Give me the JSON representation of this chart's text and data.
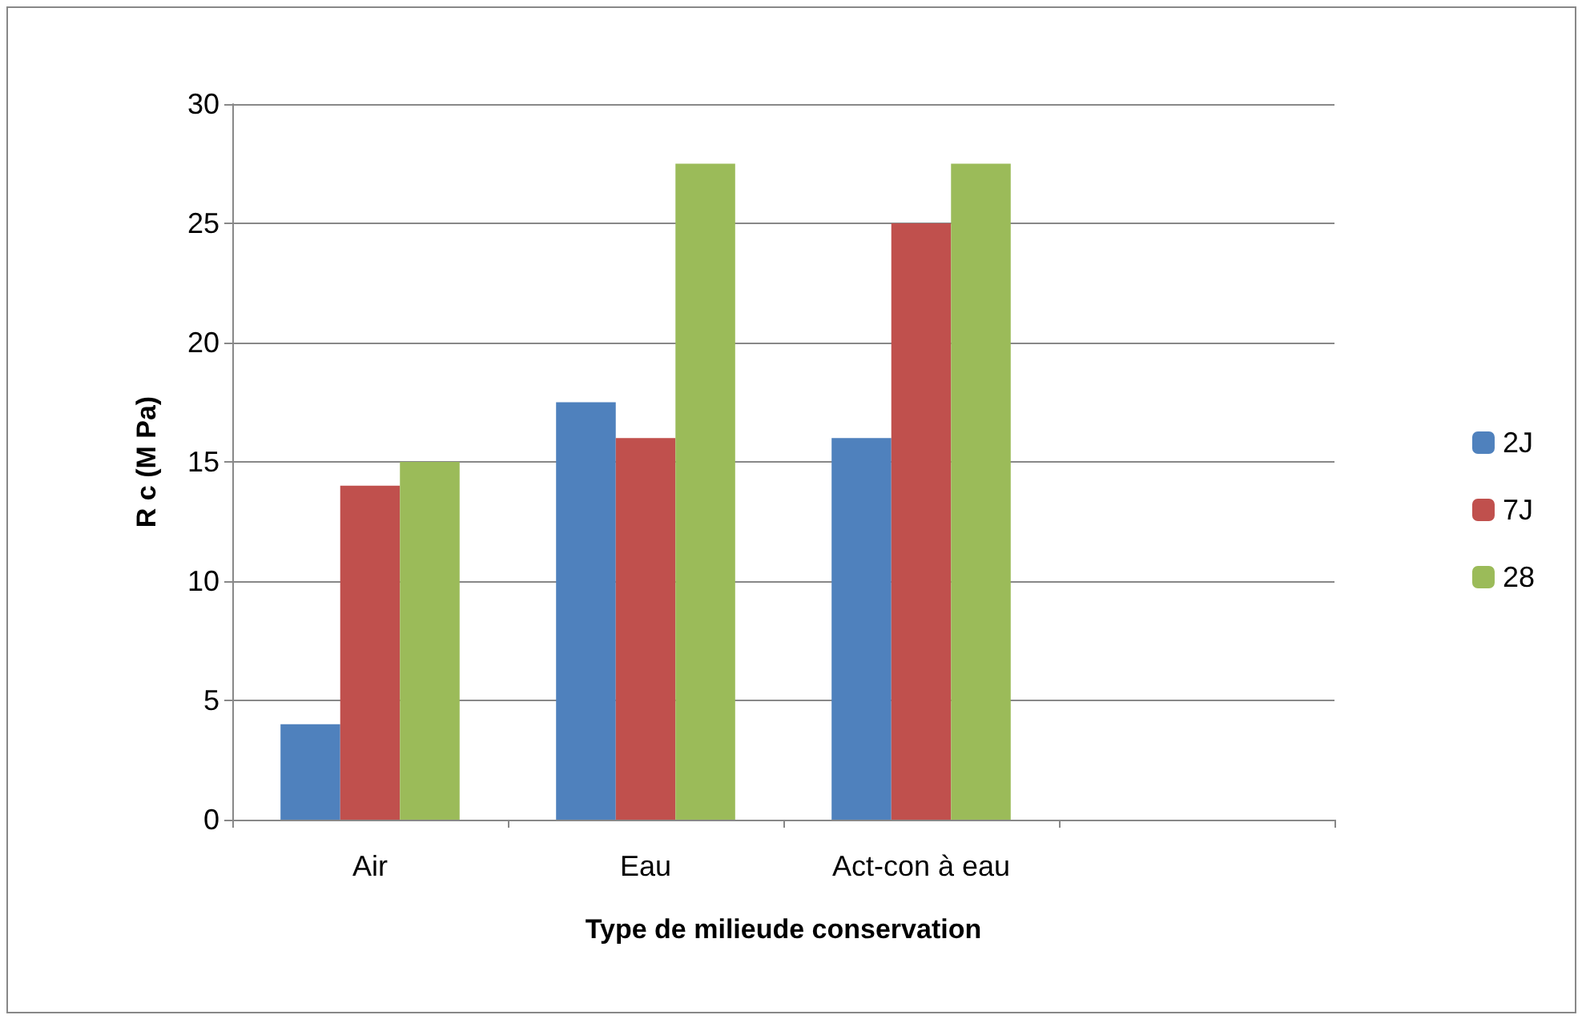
{
  "chart_data": {
    "type": "bar",
    "xlabel": "Type de milieude conservation",
    "ylabel": "R c (M Pa)",
    "categories": [
      "Air",
      "Eau",
      "Act-con à eau",
      null
    ],
    "series": [
      {
        "name": "2J",
        "color": "#4f81bd",
        "values": [
          4,
          17.5,
          16,
          null
        ]
      },
      {
        "name": "7J",
        "color": "#c0504d",
        "values": [
          14,
          16,
          25,
          null
        ]
      },
      {
        "name": "28",
        "color": "#9bbb59",
        "values": [
          15,
          27.5,
          27.5,
          null
        ]
      }
    ],
    "ylim": [
      0,
      30
    ],
    "yticks": [
      0,
      5,
      10,
      15,
      20,
      25,
      30
    ],
    "grid": "y",
    "legend": "right"
  }
}
